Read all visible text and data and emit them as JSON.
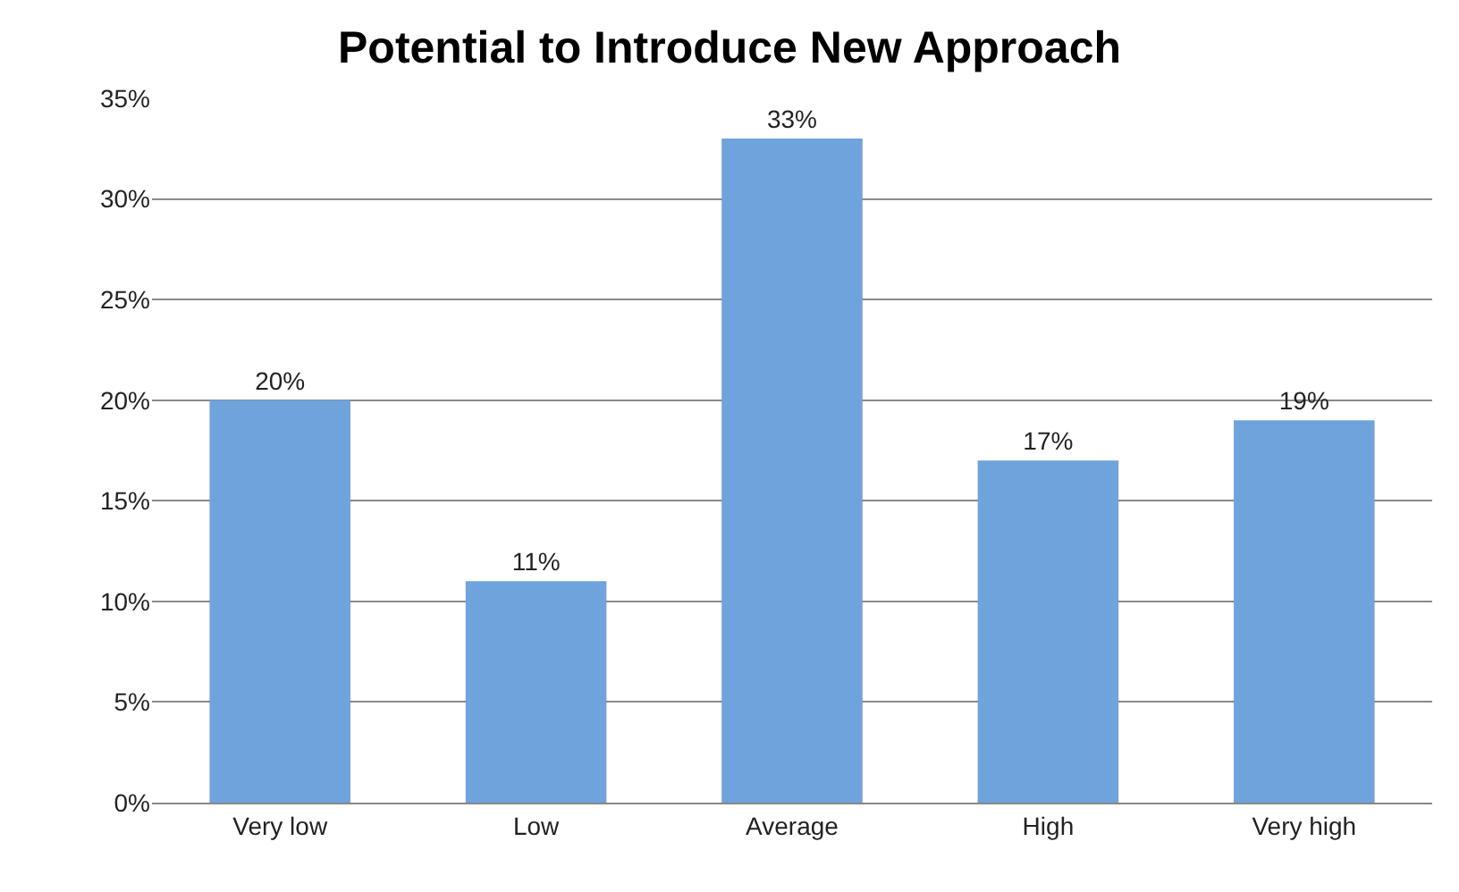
{
  "chart_data": {
    "type": "bar",
    "title": "Potential to Introduce New Approach",
    "categories": [
      "Very low",
      "Low",
      "Average",
      "High",
      "Very high"
    ],
    "values": [
      20,
      11,
      33,
      17,
      19
    ],
    "value_labels": [
      "20%",
      "11%",
      "33%",
      "17%",
      "19%"
    ],
    "color": "#6fa3dc",
    "ylim": [
      0,
      35
    ],
    "yticks": [
      {
        "value": 0,
        "label": "0%"
      },
      {
        "value": 5,
        "label": "5%"
      },
      {
        "value": 10,
        "label": "10%"
      },
      {
        "value": 15,
        "label": "15%"
      },
      {
        "value": 20,
        "label": "20%"
      },
      {
        "value": 25,
        "label": "25%"
      },
      {
        "value": 30,
        "label": "30%"
      },
      {
        "value": 35,
        "label": "35%"
      }
    ],
    "grid": "y"
  }
}
